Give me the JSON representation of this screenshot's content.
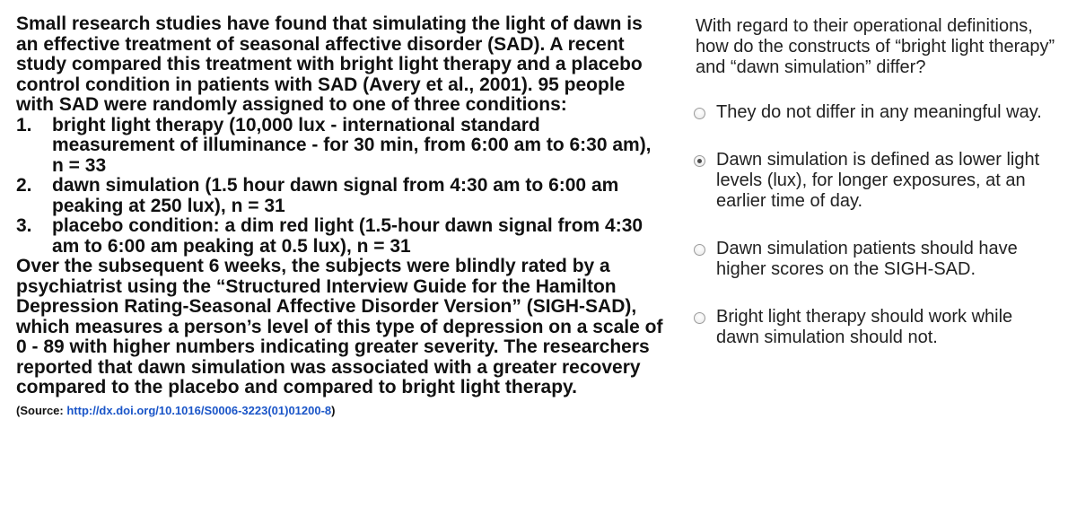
{
  "passage": {
    "intro": "Small research studies have found that simulating the light of dawn is an effective treatment of seasonal affective disorder (SAD). A recent study compared this treatment with bright light therapy and a placebo control condition in patients with SAD (Avery et al., 2001). 95 people with SAD were randomly assigned to one of three conditions:",
    "conditions": [
      {
        "num": "1.",
        "text": "bright light therapy (10,000 lux - international standard measurement of illuminance - for 30 min, from 6:00 am to 6:30 am), n = 33"
      },
      {
        "num": "2.",
        "text": "dawn simulation (1.5 hour dawn signal from 4:30 am to 6:00 am peaking at 250 lux), n = 31"
      },
      {
        "num": "3.",
        "text": "placebo condition: a dim red light (1.5-hour dawn signal from 4:30 am to 6:00 am peaking at 0.5 lux), n = 31"
      }
    ],
    "followup": "Over the subsequent 6 weeks, the subjects were blindly rated by a psychiatrist using the “Structured Interview Guide for the Hamilton Depression Rating-Seasonal Affective Disorder Version” (SIGH-SAD), which measures a person’s level of this type of depression on a scale of 0 - 89 with higher numbers indicating greater severity. The researchers reported that dawn simulation was associated with a greater recovery compared to the placebo and compared to bright light therapy.",
    "source_label": "(Source: ",
    "source_link": "http://dx.doi.org/10.1016/S0006-3223(01)01200-8",
    "source_close": ")"
  },
  "question": {
    "text": "With regard to their operational definitions, how do the constructs of “bright light therapy” and “dawn simulation” differ?",
    "options": [
      {
        "label": "They do not differ in any meaningful way.",
        "checked": false
      },
      {
        "label": "Dawn simulation is defined as lower light levels (lux), for longer exposures, at an earlier time of day.",
        "checked": true
      },
      {
        "label": "Dawn simulation patients should have higher scores on the SIGH-SAD.",
        "checked": false
      },
      {
        "label": "Bright light therapy should work while dawn simulation should not.",
        "checked": false
      }
    ]
  }
}
